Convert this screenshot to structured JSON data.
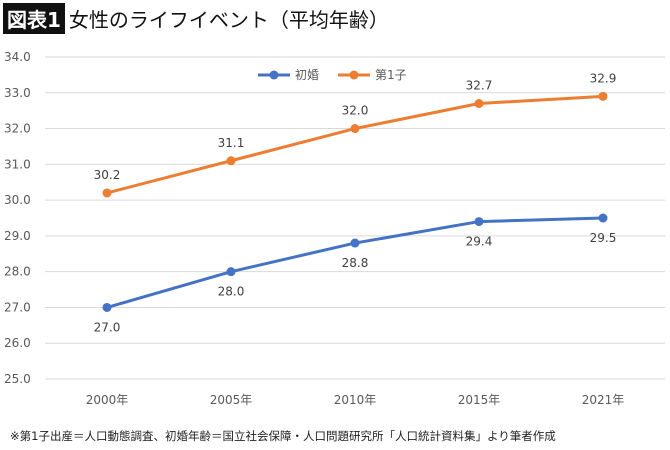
{
  "header": {
    "badge": "図表1",
    "title": "女性のライフイベント（平均年齢）"
  },
  "footer": "※第1子出産＝人口動態調査、初婚年齢＝国立社会保障・人口問題研究所「人口統計資料集」より筆者作成",
  "chart_data": {
    "type": "line",
    "title": "女性のライフイベント（平均年齢）",
    "categories": [
      "2000年",
      "2005年",
      "2010年",
      "2015年",
      "2021年"
    ],
    "series": [
      {
        "name": "初婚",
        "color": "#4472C4",
        "values": [
          27.0,
          28.0,
          28.8,
          29.4,
          29.5
        ],
        "label_position": "below"
      },
      {
        "name": "第1子",
        "color": "#ED7D31",
        "values": [
          30.2,
          31.1,
          32.0,
          32.7,
          32.9
        ],
        "label_position": "above"
      }
    ],
    "ylim": [
      25.0,
      34.0
    ],
    "yticks": [
      "25.0",
      "26.0",
      "27.0",
      "28.0",
      "29.0",
      "30.0",
      "31.0",
      "32.0",
      "33.0",
      "34.0"
    ],
    "grid": true,
    "legend": "top-center",
    "xlabel": "",
    "ylabel": ""
  }
}
